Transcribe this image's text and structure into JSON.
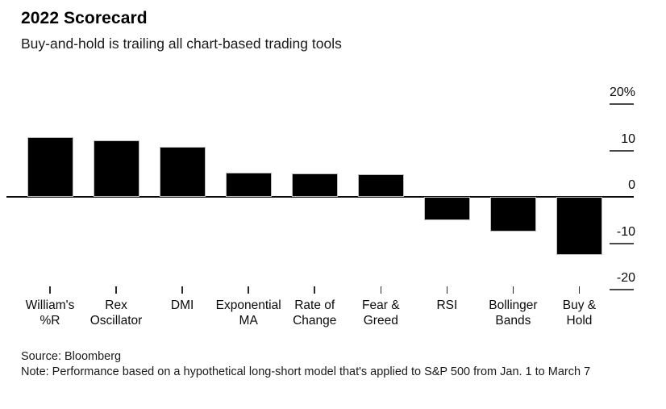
{
  "header": {
    "title": "2022 Scorecard",
    "subtitle": "Buy-and-hold is trailing all chart-based trading tools"
  },
  "footer": {
    "source": "Source: Bloomberg",
    "note": "Note: Performance based on a hypothetical long-short model that's applied to S&P 500 from Jan. 1 to March 7"
  },
  "chart_data": {
    "type": "bar",
    "title": "2022 Scorecard",
    "subtitle": "Buy-and-hold is trailing all chart-based trading tools",
    "categories": [
      "William's %R",
      "Rex Oscillator",
      "DMI",
      "Exponential MA",
      "Rate of Change",
      "Fear & Greed",
      "RSI",
      "Bollinger Bands",
      "Buy & Hold"
    ],
    "category_lines": [
      [
        "William's",
        "%R"
      ],
      [
        "Rex",
        "Oscillator"
      ],
      [
        "DMI"
      ],
      [
        "Exponential",
        "MA"
      ],
      [
        "Rate of",
        "Change"
      ],
      [
        "Fear &",
        "Greed"
      ],
      [
        "RSI"
      ],
      [
        "Bollinger",
        "Bands"
      ],
      [
        "Buy &",
        "Hold"
      ]
    ],
    "values": [
      12.9,
      12.2,
      10.8,
      5.2,
      5.0,
      4.9,
      -5.0,
      -7.5,
      -12.5
    ],
    "unit": "%",
    "ylabel": "",
    "xlabel": "",
    "yticks": [
      {
        "label": "20%",
        "value": 20
      },
      {
        "label": "10",
        "value": 10
      },
      {
        "label": "0",
        "value": 0
      },
      {
        "label": "-10",
        "value": -10
      },
      {
        "label": "-20",
        "value": -20
      }
    ],
    "ylim": [
      -22,
      22
    ],
    "bar_color": "#000000",
    "axis_label_side": "right",
    "legend": "none",
    "grid": "off"
  }
}
